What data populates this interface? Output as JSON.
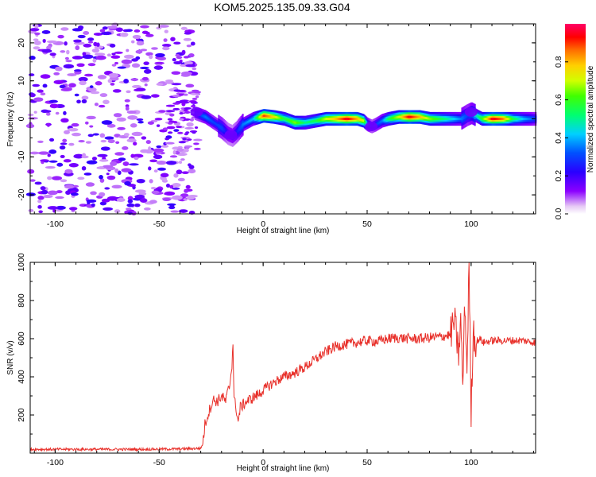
{
  "figure_title": "KOM5.2025.135.09.33.G04",
  "colors": {
    "snr_line": "#e8302a",
    "frame": "#000000"
  },
  "chart_data": [
    {
      "type": "heatmap",
      "xlabel": "Height of straight line (km)",
      "ylabel": "Frequency (Hz)",
      "xlim": [
        -112,
        131
      ],
      "ylim": [
        -25,
        25
      ],
      "xticks": [
        -100,
        -50,
        0,
        50,
        100
      ],
      "yticks": [
        -20,
        -10,
        0,
        10,
        20
      ],
      "colorbar": {
        "label": "Normalized spectral amplitude",
        "range": [
          0,
          1
        ],
        "ticks": [
          0.0,
          0.2,
          0.4,
          0.6,
          0.8
        ],
        "colormap": "rainbow (violet→blue→cyan→green→yellow→orange→red→magenta)"
      },
      "ridge_frequency_hz": {
        "x": [
          -33,
          -28,
          -24,
          -20,
          -17,
          -15,
          -13,
          -10,
          -5,
          0,
          5,
          10,
          15,
          20,
          25,
          30,
          35,
          40,
          45,
          48,
          50,
          52,
          54,
          57,
          60,
          65,
          70,
          75,
          80,
          85,
          90,
          95,
          98,
          100,
          105,
          110,
          115,
          120,
          125,
          131
        ],
        "y": [
          1.5,
          0.5,
          -1.0,
          -2.5,
          -4.0,
          -4.5,
          -3.5,
          -1.5,
          0.0,
          0.8,
          0.5,
          0.0,
          -1.0,
          -1.0,
          -0.5,
          0.0,
          0.0,
          0.0,
          0.0,
          -0.5,
          -1.5,
          -2.0,
          -1.5,
          -0.5,
          0.0,
          0.5,
          0.5,
          0.5,
          0.0,
          0.0,
          0.0,
          0.0,
          1.0,
          1.5,
          0.0,
          0.0,
          0.0,
          0.0,
          0.0,
          0.0
        ],
        "amplitude": [
          0.25,
          0.35,
          0.3,
          0.3,
          0.2,
          0.2,
          0.25,
          0.35,
          0.4,
          0.9,
          0.75,
          0.55,
          0.65,
          0.5,
          0.55,
          0.7,
          0.8,
          0.95,
          0.8,
          0.7,
          0.35,
          0.25,
          0.3,
          0.35,
          0.55,
          0.7,
          0.95,
          0.8,
          0.65,
          0.55,
          0.45,
          0.35,
          0.3,
          0.35,
          0.6,
          0.95,
          0.85,
          0.55,
          0.4,
          0.3
        ]
      },
      "noise_region_x": [
        -112,
        -33
      ],
      "noise_amplitude": [
        0.02,
        0.2
      ]
    },
    {
      "type": "line",
      "xlabel": "Height of straight line (km)",
      "ylabel": "SNR (v/v)",
      "xlim": [
        -112,
        131
      ],
      "ylim": [
        0,
        1000
      ],
      "xticks": [
        -100,
        -50,
        0,
        50,
        100
      ],
      "yticks": [
        200,
        400,
        600,
        800,
        1000
      ],
      "series": [
        {
          "x": [
            -112,
            -60,
            -40,
            -30,
            -29,
            -28,
            -26,
            -24,
            -22,
            -20,
            -18,
            -17,
            -16,
            -15,
            -14.5,
            -14,
            -13,
            -12,
            -11,
            -10,
            -8,
            -5,
            -2,
            0,
            5,
            10,
            15,
            20,
            25,
            30,
            35,
            40,
            45,
            50,
            55,
            60,
            65,
            70,
            75,
            80,
            85,
            90,
            92,
            94,
            95,
            96,
            97,
            98,
            99,
            100,
            101,
            102,
            104,
            106,
            110,
            115,
            120,
            125,
            131
          ],
          "y": [
            20,
            20,
            22,
            25,
            50,
            150,
            220,
            280,
            270,
            300,
            270,
            320,
            360,
            470,
            580,
            280,
            240,
            160,
            240,
            250,
            270,
            290,
            310,
            330,
            370,
            400,
            420,
            450,
            490,
            530,
            560,
            570,
            580,
            590,
            585,
            600,
            605,
            600,
            600,
            605,
            610,
            620,
            700,
            520,
            690,
            350,
            800,
            430,
            1000,
            200,
            660,
            580,
            600,
            580,
            590,
            590,
            590,
            590,
            580
          ]
        }
      ]
    }
  ]
}
